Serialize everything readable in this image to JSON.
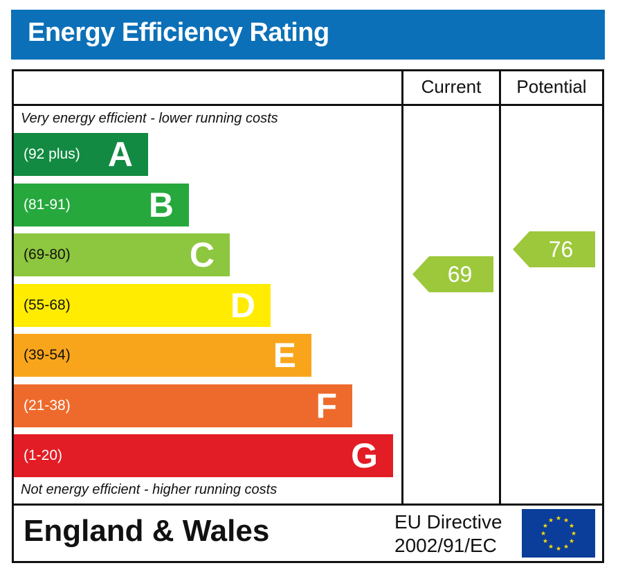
{
  "title": "Energy Efficiency Rating",
  "columns": {
    "current": "Current",
    "potential": "Potential"
  },
  "top_note": "Very energy efficient - lower running costs",
  "bottom_note": "Not energy efficient - higher running costs",
  "footer": {
    "region": "England & Wales",
    "directive_line1": "EU Directive",
    "directive_line2": "2002/91/EC",
    "flag": "eu-flag"
  },
  "chart_data": {
    "type": "bar",
    "bands": [
      {
        "letter": "A",
        "range": "(92 plus)",
        "color": "#128a42"
      },
      {
        "letter": "B",
        "range": "(81-91)",
        "color": "#26a83d"
      },
      {
        "letter": "C",
        "range": "(69-80)",
        "color": "#8dc63f"
      },
      {
        "letter": "D",
        "range": "(55-68)",
        "color": "#ffec00"
      },
      {
        "letter": "E",
        "range": "(39-54)",
        "color": "#f9a51b"
      },
      {
        "letter": "F",
        "range": "(21-38)",
        "color": "#ee6a2c"
      },
      {
        "letter": "G",
        "range": "(1-20)",
        "color": "#e31d25"
      }
    ],
    "ratings": {
      "current": {
        "value": 69,
        "label": "69",
        "color": "#9dc83b"
      },
      "potential": {
        "value": 76,
        "label": "76",
        "color": "#9dc83b"
      }
    }
  }
}
